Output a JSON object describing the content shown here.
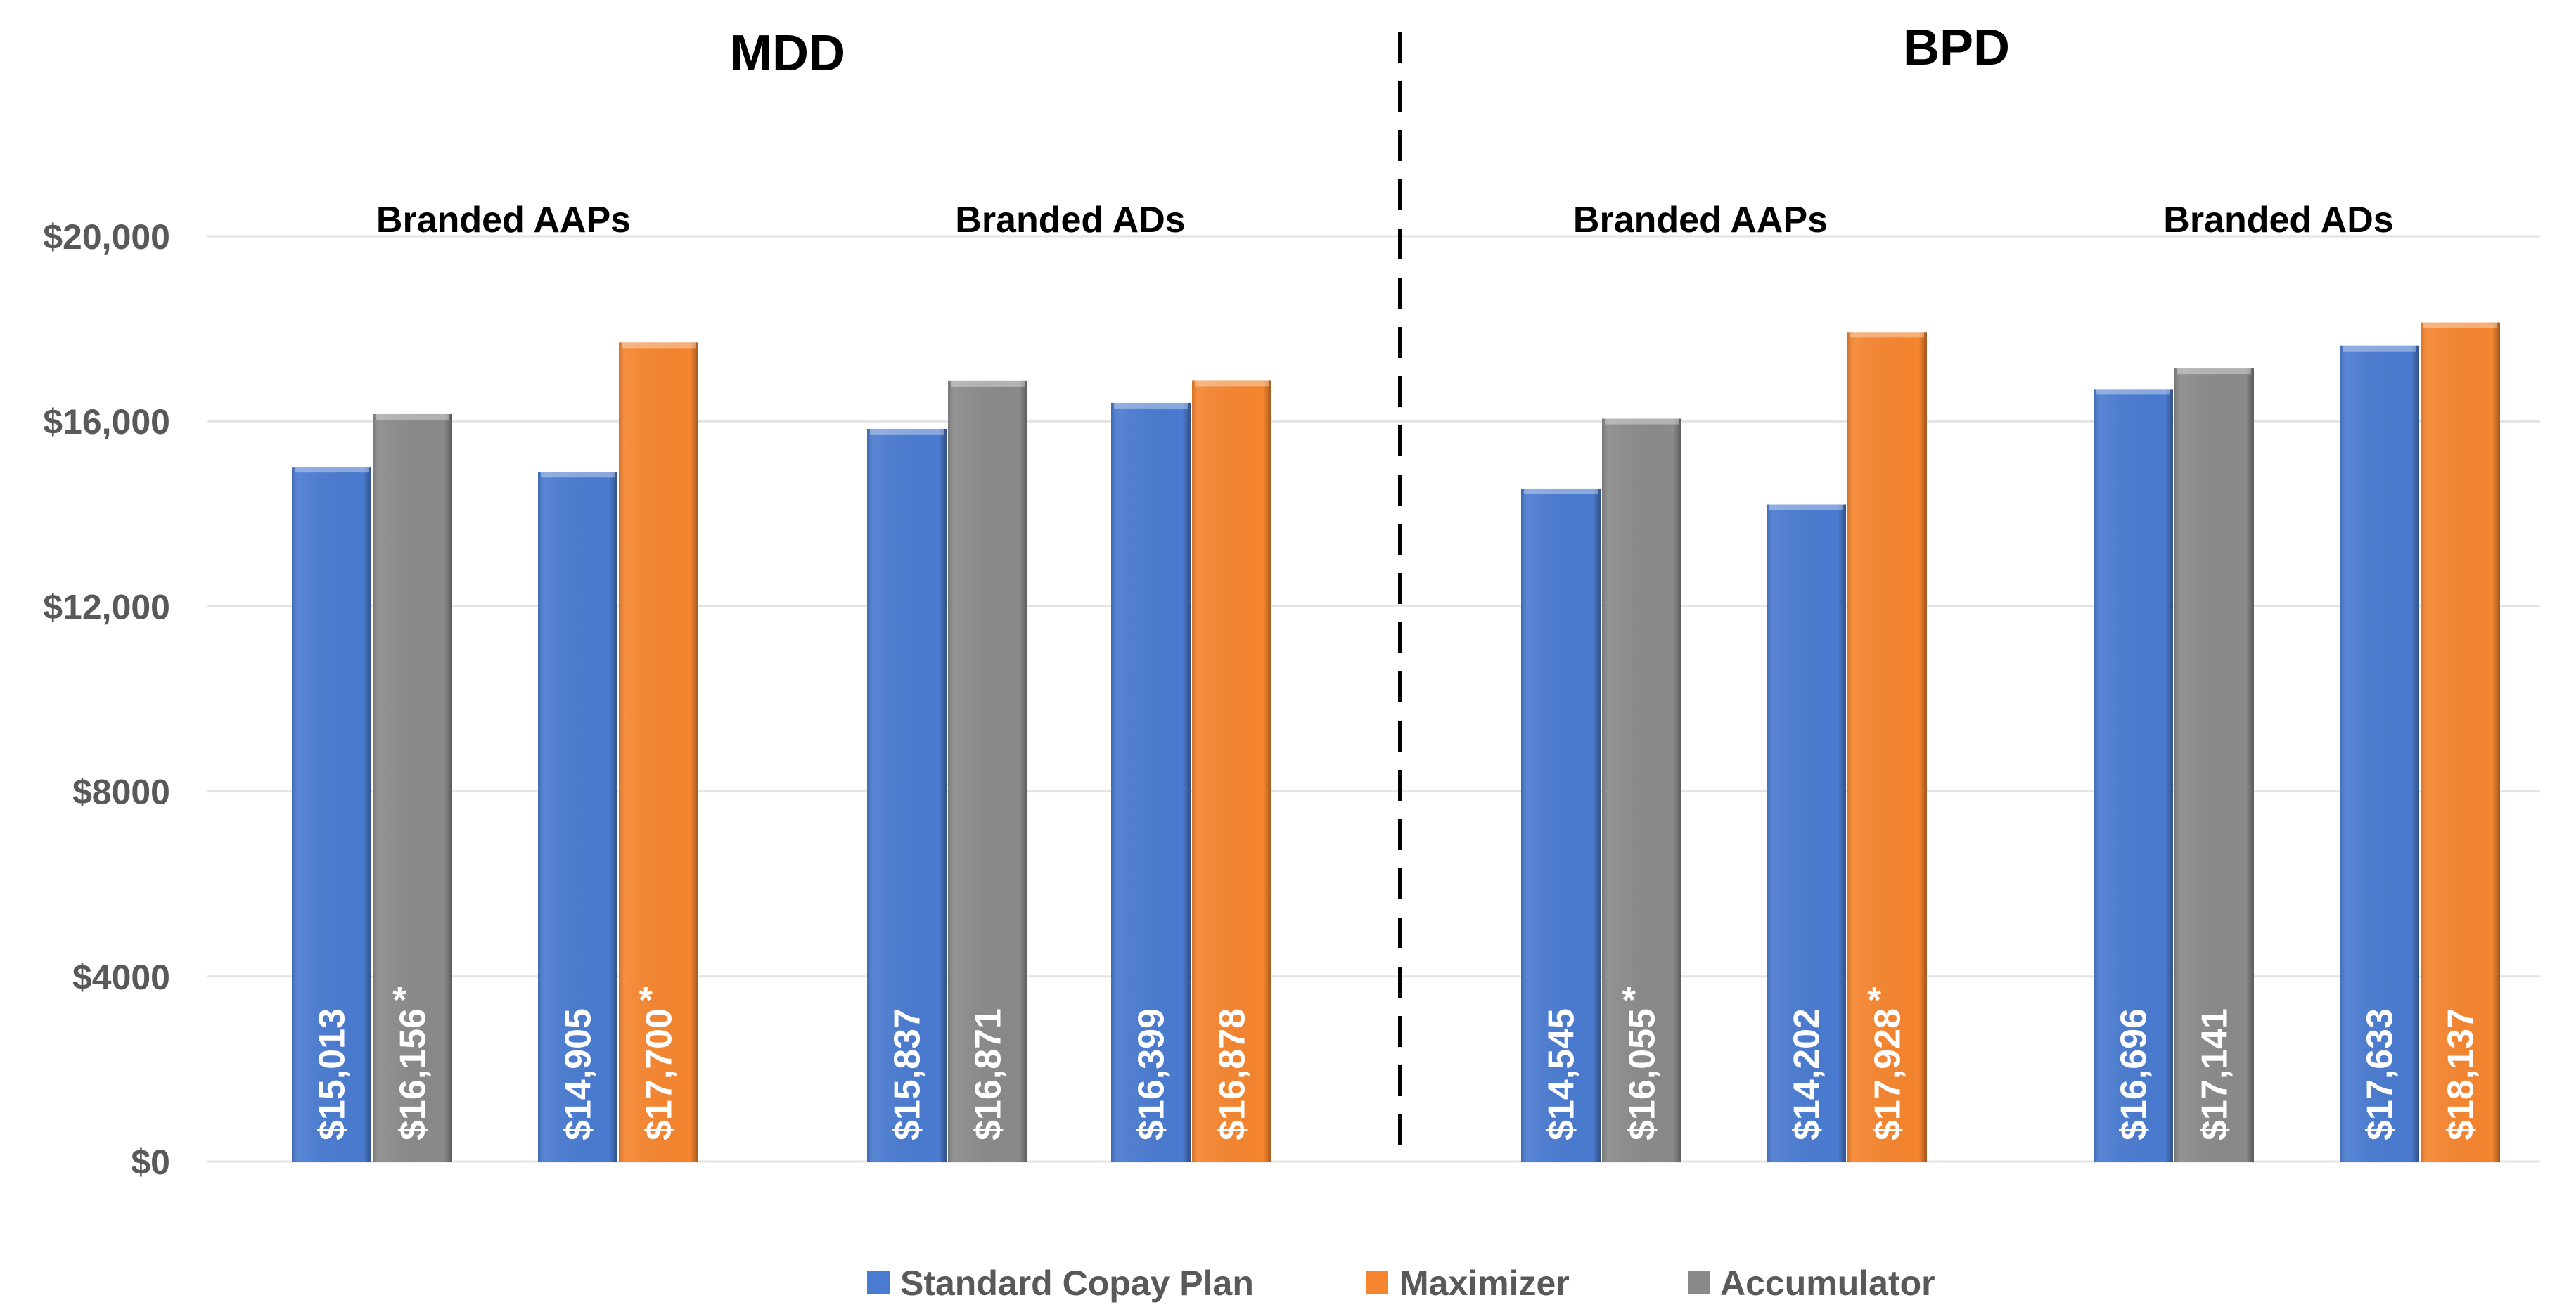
{
  "chart_data": {
    "type": "bar",
    "ylim": [
      0,
      20000
    ],
    "yticks": [
      0,
      4000,
      8000,
      12000,
      16000,
      20000
    ],
    "ytick_labels": [
      "$0",
      "$4000",
      "$8000",
      "$12,000",
      "$16,000",
      "$20,000"
    ],
    "grid": true,
    "legend_placement": "bottom",
    "legend": [
      {
        "name": "Standard Copay Plan",
        "color": "#4a7bd0"
      },
      {
        "name": "Maximizer",
        "color": "#f5852f"
      },
      {
        "name": "Accumulator",
        "color": "#8a8a8a"
      }
    ],
    "panels": [
      {
        "title": "MDD",
        "groups": [
          {
            "label": "Branded AAPs",
            "pairs": [
              {
                "standard": 15013,
                "other_series": "Accumulator",
                "other": 16156,
                "standard_label": "$15,013",
                "other_label": "$16,156",
                "asterisk": "*"
              },
              {
                "standard": 14905,
                "other_series": "Maximizer",
                "other": 17700,
                "standard_label": "$14,905",
                "other_label": "$17,700",
                "asterisk": "*"
              }
            ]
          },
          {
            "label": "Branded ADs",
            "pairs": [
              {
                "standard": 15837,
                "other_series": "Accumulator",
                "other": 16871,
                "standard_label": "$15,837",
                "other_label": "$16,871",
                "asterisk": ""
              },
              {
                "standard": 16399,
                "other_series": "Maximizer",
                "other": 16878,
                "standard_label": "$16,399",
                "other_label": "$16,878",
                "asterisk": ""
              }
            ]
          }
        ]
      },
      {
        "title": "BPD",
        "groups": [
          {
            "label": "Branded AAPs",
            "pairs": [
              {
                "standard": 14545,
                "other_series": "Accumulator",
                "other": 16055,
                "standard_label": "$14,545",
                "other_label": "$16,055",
                "asterisk": "*"
              },
              {
                "standard": 14202,
                "other_series": "Maximizer",
                "other": 17928,
                "standard_label": "$14,202",
                "other_label": "$17,928",
                "asterisk": "*"
              }
            ]
          },
          {
            "label": "Branded ADs",
            "pairs": [
              {
                "standard": 16696,
                "other_series": "Accumulator",
                "other": 17141,
                "standard_label": "$16,696",
                "other_label": "$17,141",
                "asterisk": ""
              },
              {
                "standard": 17633,
                "other_series": "Maximizer",
                "other": 18137,
                "standard_label": "$17,633",
                "other_label": "$18,137",
                "asterisk": ""
              }
            ]
          }
        ]
      }
    ]
  }
}
